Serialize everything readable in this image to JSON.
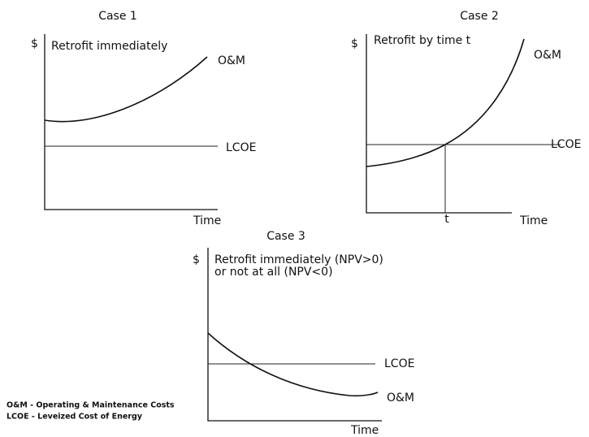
{
  "cases": [
    {
      "title": "Case 1",
      "y_label": "$",
      "subtitle": [
        "Retrofit immediately"
      ],
      "x_label": "Time",
      "curve_label": "O&M",
      "line_label": "LCOE"
    },
    {
      "title": "Case 2",
      "y_label": "$",
      "subtitle": [
        "Retrofit by time t"
      ],
      "x_label": "Time",
      "t_label": "t",
      "curve_label": "O&M",
      "line_label": "LCOE"
    },
    {
      "title": "Case 3",
      "y_label": "$",
      "subtitle": [
        "Retrofit immediately (NPV>0)",
        "or not at all (NPV<0)"
      ],
      "x_label": "Time",
      "curve_label": "O&M",
      "line_label": "LCOE"
    }
  ],
  "notes": [
    "O&M - Operating & Maintenance Costs",
    "LCOE - Leveized Cost of Energy"
  ]
}
